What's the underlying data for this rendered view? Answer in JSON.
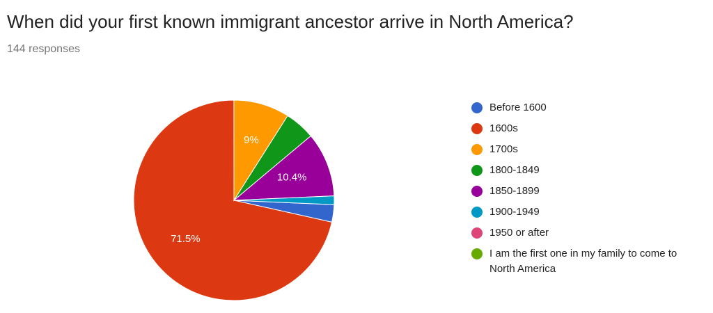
{
  "chart_data": {
    "type": "pie",
    "title": "When did your first known immigrant ancestor arrive in North America?",
    "subtitle": "144 responses",
    "categories": [
      "Before 1600",
      "1600s",
      "1700s",
      "1800-1849",
      "1850-1899",
      "1900-1949",
      "1950 or after",
      "I am the first one in my family to come to North America"
    ],
    "values": [
      2.8,
      71.5,
      9,
      4.9,
      10.4,
      1.4,
      0,
      0
    ],
    "value_labels": [
      null,
      "71.5%",
      "9%",
      null,
      "10.4%",
      null,
      null,
      null
    ],
    "colors": [
      "#3366cc",
      "#dc3912",
      "#ff9900",
      "#109618",
      "#990099",
      "#0099c6",
      "#dd4477",
      "#66aa00"
    ],
    "legend": "right"
  }
}
